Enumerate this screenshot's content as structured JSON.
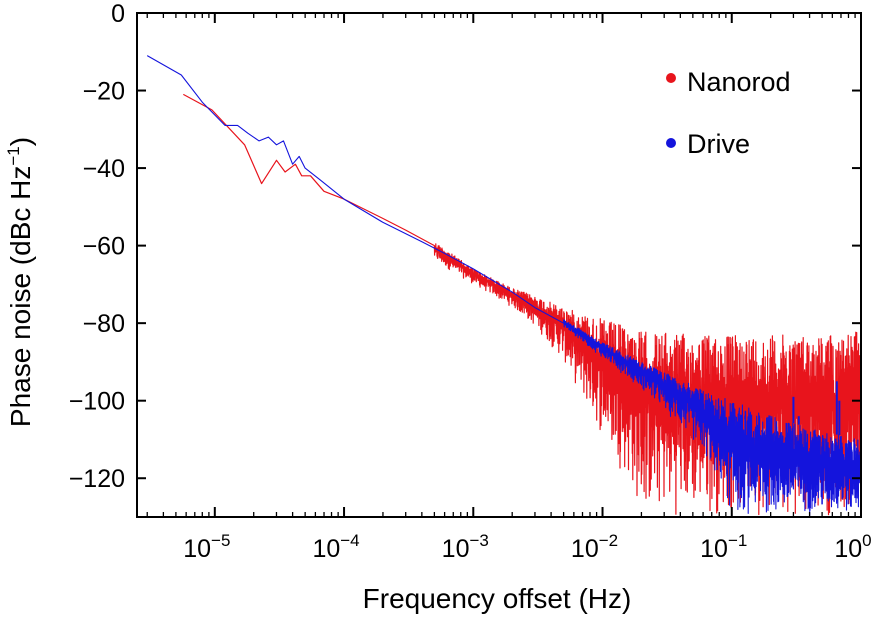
{
  "chart_data": {
    "type": "line",
    "title": "",
    "xlabel": "Frequency offset (Hz)",
    "ylabel": "Phase noise (dBc Hz",
    "ylabel_sup": "−1",
    "ylabel_tail": ")",
    "x_scale": "log",
    "xlim": [
      2.5e-06,
      1
    ],
    "ylim": [
      -130,
      0
    ],
    "grid": false,
    "legend_position": "top-right",
    "x_ticks": [
      {
        "value": 1e-05,
        "base": "10",
        "exp": "−5"
      },
      {
        "value": 0.0001,
        "base": "10",
        "exp": "−4"
      },
      {
        "value": 0.001,
        "base": "10",
        "exp": "−3"
      },
      {
        "value": 0.01,
        "base": "10",
        "exp": "−2"
      },
      {
        "value": 0.1,
        "base": "10",
        "exp": "−1"
      },
      {
        "value": 1,
        "base": "10",
        "exp": "0"
      }
    ],
    "y_ticks": [
      {
        "value": 0,
        "label": "0"
      },
      {
        "value": -20,
        "label": "−20"
      },
      {
        "value": -40,
        "label": "−40"
      },
      {
        "value": -60,
        "label": "−60"
      },
      {
        "value": -80,
        "label": "−80"
      },
      {
        "value": -100,
        "label": "−100"
      },
      {
        "value": -120,
        "label": "−120"
      }
    ],
    "series": [
      {
        "name": "Nanorod",
        "color": "#e8141c",
        "trend": {
          "x": [
            5.7e-06,
            9.5e-06,
            1.7e-05,
            2.3e-05,
            3e-05,
            3.5e-05,
            4.2e-05,
            4.7e-05,
            5.5e-05,
            7e-05,
            0.0001,
            0.0002,
            0.0003,
            0.0005,
            0.001,
            0.002,
            0.003,
            0.005,
            0.008,
            0.01,
            0.02,
            0.03,
            0.05,
            0.1,
            0.2,
            0.3,
            0.5,
            0.7,
            1
          ],
          "y": [
            -21,
            -25,
            -34,
            -44,
            -38,
            -41,
            -39,
            -42,
            -42,
            -46,
            -48,
            -53,
            -56,
            -60,
            -66,
            -71,
            -74,
            -79,
            -83,
            -84,
            -87,
            -87,
            -87,
            -87,
            -87,
            -87,
            -87,
            -87,
            -87
          ]
        },
        "upper_env": {
          "x": [
            0.0005,
            0.001,
            0.002,
            0.003,
            0.005,
            0.01,
            0.02,
            0.05,
            0.1,
            0.2,
            0.5,
            1
          ],
          "y": [
            -59,
            -66,
            -71,
            -73,
            -76,
            -79,
            -82,
            -83,
            -83,
            -83,
            -83,
            -82
          ]
        },
        "lower_env": {
          "x": [
            0.0005,
            0.001,
            0.002,
            0.003,
            0.005,
            0.007,
            0.01,
            0.015,
            0.02,
            0.03,
            0.05,
            0.1,
            0.2,
            0.5,
            1
          ],
          "y": [
            -64,
            -70,
            -76,
            -81,
            -90,
            -100,
            -110,
            -120,
            -130,
            -130,
            -130,
            -130,
            -130,
            -130,
            -130
          ]
        }
      },
      {
        "name": "Drive",
        "color": "#1414dc",
        "trend": {
          "x": [
            3e-06,
            5.5e-06,
            8e-06,
            1.2e-05,
            1.5e-05,
            1.8e-05,
            2.2e-05,
            2.6e-05,
            3e-05,
            3.4e-05,
            4e-05,
            4.5e-05,
            5e-05,
            6.5e-05,
            0.0001,
            0.0002,
            0.0004,
            0.0006,
            0.001,
            0.002,
            0.003,
            0.005,
            0.01,
            0.02,
            0.03,
            0.05,
            0.07,
            0.1,
            0.2,
            0.3,
            0.5,
            0.7,
            1
          ],
          "y": [
            -11,
            -16,
            -23,
            -29,
            -29,
            -31,
            -33,
            -32,
            -34,
            -33,
            -39,
            -37,
            -40,
            -43,
            -48,
            -54,
            -59,
            -62,
            -66,
            -72,
            -76,
            -80,
            -86,
            -92,
            -96,
            -101,
            -104,
            -107,
            -110,
            -111,
            -112,
            -113,
            -114
          ]
        },
        "upper_env": {
          "x": [
            0.005,
            0.01,
            0.02,
            0.05,
            0.1,
            0.2,
            0.5,
            1
          ],
          "y": [
            -79,
            -85,
            -90,
            -96,
            -100,
            -104,
            -108,
            -110
          ]
        },
        "lower_env": {
          "x": [
            0.005,
            0.01,
            0.02,
            0.04,
            0.06,
            0.08,
            0.1,
            0.15,
            0.2,
            0.5,
            1
          ],
          "y": [
            -81,
            -89,
            -97,
            -107,
            -114,
            -122,
            -130,
            -130,
            -130,
            -130,
            -130
          ]
        },
        "spikes": [
          {
            "x": 0.3,
            "y": -99
          },
          {
            "x": 0.33,
            "y": -104
          },
          {
            "x": 0.65,
            "y": -95
          },
          {
            "x": 0.68,
            "y": -100
          }
        ]
      }
    ]
  }
}
